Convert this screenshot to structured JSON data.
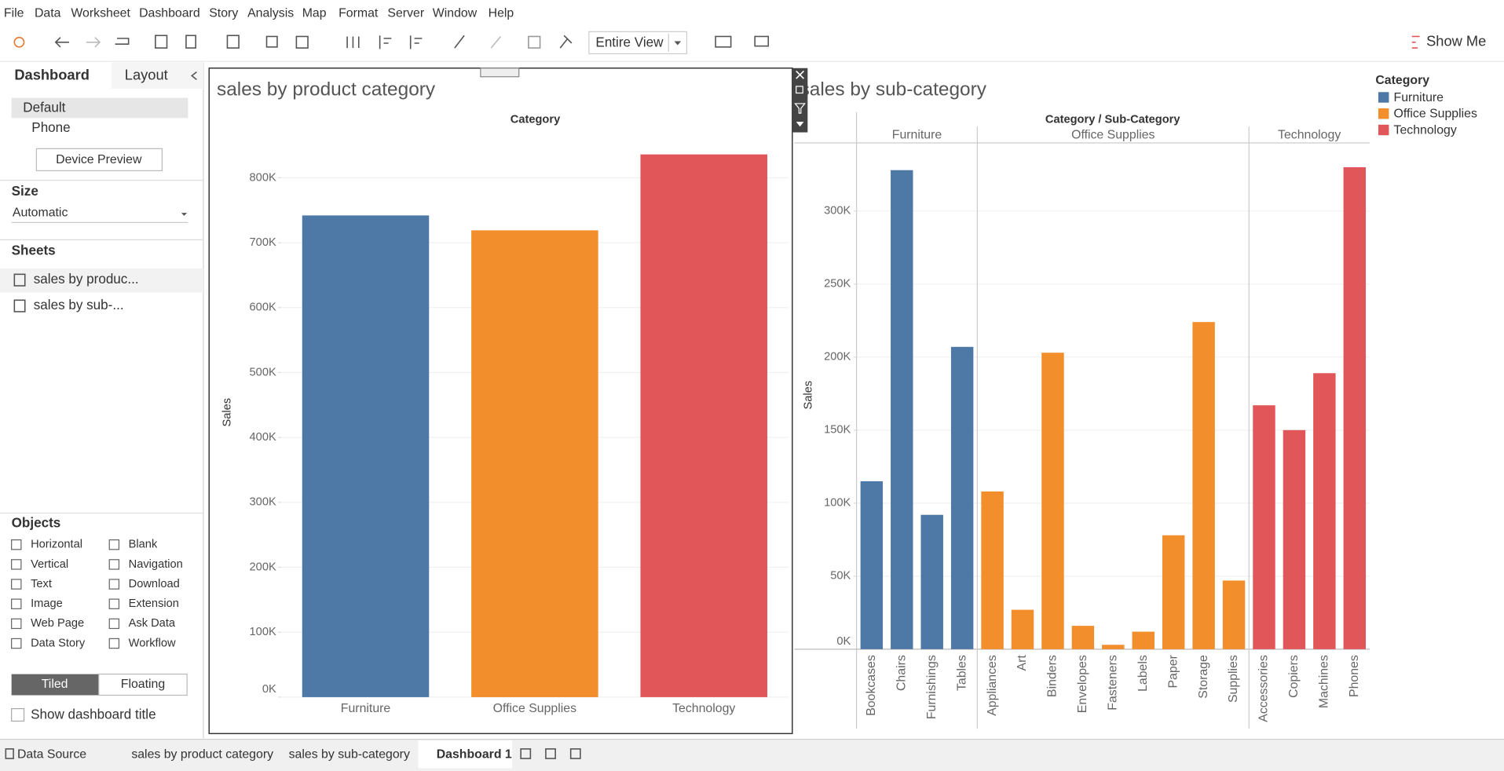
{
  "menu": [
    "File",
    "Data",
    "Worksheet",
    "Dashboard",
    "Story",
    "Analysis",
    "Map",
    "Format",
    "Server",
    "Window",
    "Help"
  ],
  "toolbar": {
    "fit": "Entire View",
    "show_me": "Show Me"
  },
  "side_panel": {
    "tabs": [
      "Dashboard",
      "Layout"
    ],
    "devices": [
      "Default",
      "Phone"
    ],
    "device_preview": "Device Preview",
    "size_heading": "Size",
    "size_value": "Automatic",
    "sheets_heading": "Sheets",
    "sheets": [
      "sales by produc...",
      "sales by sub-..."
    ],
    "objects_heading": "Objects",
    "objects": [
      "Horizontal",
      "Blank",
      "Vertical",
      "Navigation",
      "Text",
      "Download",
      "Image",
      "Extension",
      "Web Page",
      "Ask Data",
      "Data Story",
      "Workflow"
    ],
    "layout_modes": [
      "Tiled",
      "Floating"
    ],
    "show_title": "Show dashboard title"
  },
  "bottom_tabs": [
    "Data Source",
    "sales by product category",
    "sales by sub-category",
    "Dashboard 1"
  ],
  "chart_data": [
    {
      "type": "bar",
      "title": "sales by product category",
      "header": "Category",
      "y_label": "Sales",
      "categories": [
        "Furniture",
        "Office Supplies",
        "Technology"
      ],
      "values": [
        742000,
        719000,
        836000
      ],
      "colors": [
        "#4e79a7",
        "#f28e2b",
        "#e15759"
      ],
      "ylim": [
        0,
        867000
      ],
      "yticks": [
        {
          "value": 0,
          "label": "0K"
        },
        {
          "value": 100000,
          "label": "100K"
        },
        {
          "value": 200000,
          "label": "200K"
        },
        {
          "value": 300000,
          "label": "300K"
        },
        {
          "value": 400000,
          "label": "400K"
        },
        {
          "value": 500000,
          "label": "500K"
        },
        {
          "value": 600000,
          "label": "600K"
        },
        {
          "value": 700000,
          "label": "700K"
        },
        {
          "value": 800000,
          "label": "800K"
        }
      ],
      "grid": true
    },
    {
      "type": "bar",
      "title": "sales by sub-category",
      "header": "Category / Sub-Category",
      "y_label": "Sales",
      "legend_title": "Category",
      "groups": [
        {
          "name": "Furniture",
          "color": "#4e79a7",
          "categories": [
            "Bookcases",
            "Chairs",
            "Furnishings",
            "Tables"
          ],
          "values": [
            115000,
            328000,
            92000,
            207000
          ]
        },
        {
          "name": "Office Supplies",
          "color": "#f28e2b",
          "categories": [
            "Appliances",
            "Art",
            "Binders",
            "Envelopes",
            "Fasteners",
            "Labels",
            "Paper",
            "Storage",
            "Supplies"
          ],
          "values": [
            108000,
            27000,
            203000,
            16000,
            3000,
            12000,
            78000,
            224000,
            47000
          ]
        },
        {
          "name": "Technology",
          "color": "#e15759",
          "categories": [
            "Accessories",
            "Copiers",
            "Machines",
            "Phones"
          ],
          "values": [
            167000,
            150000,
            189000,
            330000
          ]
        }
      ],
      "ylim": [
        0,
        346000
      ],
      "yticks": [
        {
          "value": 0,
          "label": "0K"
        },
        {
          "value": 50000,
          "label": "50K"
        },
        {
          "value": 100000,
          "label": "100K"
        },
        {
          "value": 150000,
          "label": "150K"
        },
        {
          "value": 200000,
          "label": "200K"
        },
        {
          "value": 250000,
          "label": "250K"
        },
        {
          "value": 300000,
          "label": "300K"
        }
      ],
      "grid": true
    }
  ]
}
